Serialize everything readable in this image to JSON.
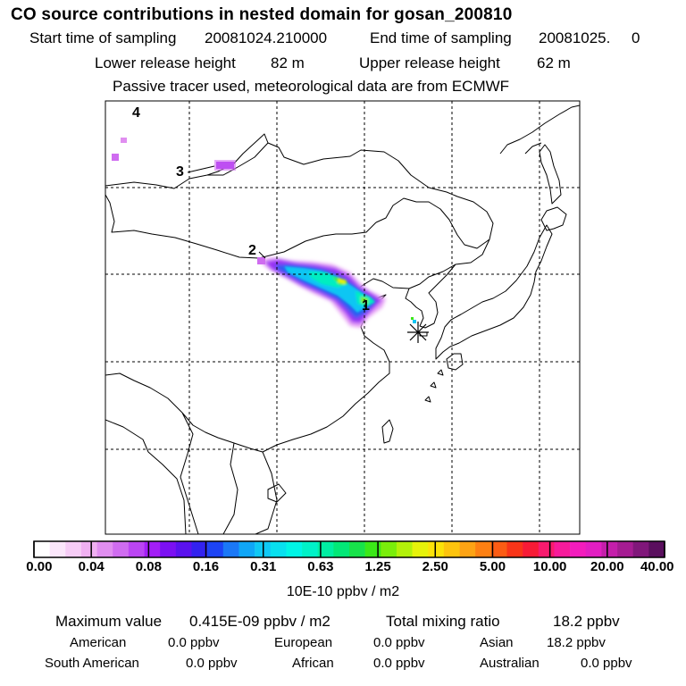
{
  "header": {
    "title": "CO  source contributions in nested domain for gosan_200810",
    "start_label": "Start time of sampling",
    "start_value": "20081024.210000",
    "end_label": "End time of sampling",
    "end_value": "20081025.     0",
    "lower_label": "Lower release height",
    "lower_value": "82 m",
    "upper_label": "Upper release height",
    "upper_value": "62 m",
    "tracer_note": "Passive tracer used, meteorological data are from ECMWF"
  },
  "map": {
    "markers": [
      {
        "label": "1"
      },
      {
        "label": "2"
      },
      {
        "label": "3"
      },
      {
        "label": "4"
      }
    ],
    "receptor_symbol": "asterisk-icon"
  },
  "colorbar": {
    "tick_labels": [
      "0.00",
      "0.04",
      "0.08",
      "0.16",
      "0.31",
      "0.63",
      "1.25",
      "2.50",
      "5.00",
      "10.00",
      "20.00",
      "40.00"
    ],
    "units": "10E-10 ppbv / m2",
    "colors": [
      "#ffffff",
      "#fbe6fb",
      "#f6ccf6",
      "#f0b0f2",
      "#e08ef0",
      "#cf6cf0",
      "#bb45f3",
      "#a31ef6",
      "#7b10f2",
      "#5a12ee",
      "#3322ef",
      "#1d44f4",
      "#1b78f6",
      "#10a6f7",
      "#0fc8f5",
      "#08e0ef",
      "#00f5e6",
      "#00f2c8",
      "#00eea2",
      "#03e877",
      "#18e24a",
      "#3be818",
      "#7aee0b",
      "#b3f10a",
      "#e6f20a",
      "#fbe209",
      "#fdc40e",
      "#fda314",
      "#fd8013",
      "#fc5c14",
      "#f93519",
      "#f71b36",
      "#f81a6e",
      "#f71b9b",
      "#f31cbd",
      "#e21ec2",
      "#c41eaa",
      "#a51c92",
      "#80177a",
      "#5a0f5e"
    ]
  },
  "stats": {
    "max_label": "Maximum value",
    "max_value": "0.415E-09 ppbv / m2",
    "total_label": "Total mixing ratio",
    "total_value": "18.2 ppbv",
    "regions": [
      {
        "name": "American",
        "value": "0.0 ppbv"
      },
      {
        "name": "European",
        "value": "0.0 ppbv"
      },
      {
        "name": "Asian",
        "value": "18.2 ppbv"
      },
      {
        "name": "South American",
        "value": "0.0 ppbv"
      },
      {
        "name": "African",
        "value": "0.0 ppbv"
      },
      {
        "name": "Australian",
        "value": "0.0 ppbv"
      }
    ]
  }
}
